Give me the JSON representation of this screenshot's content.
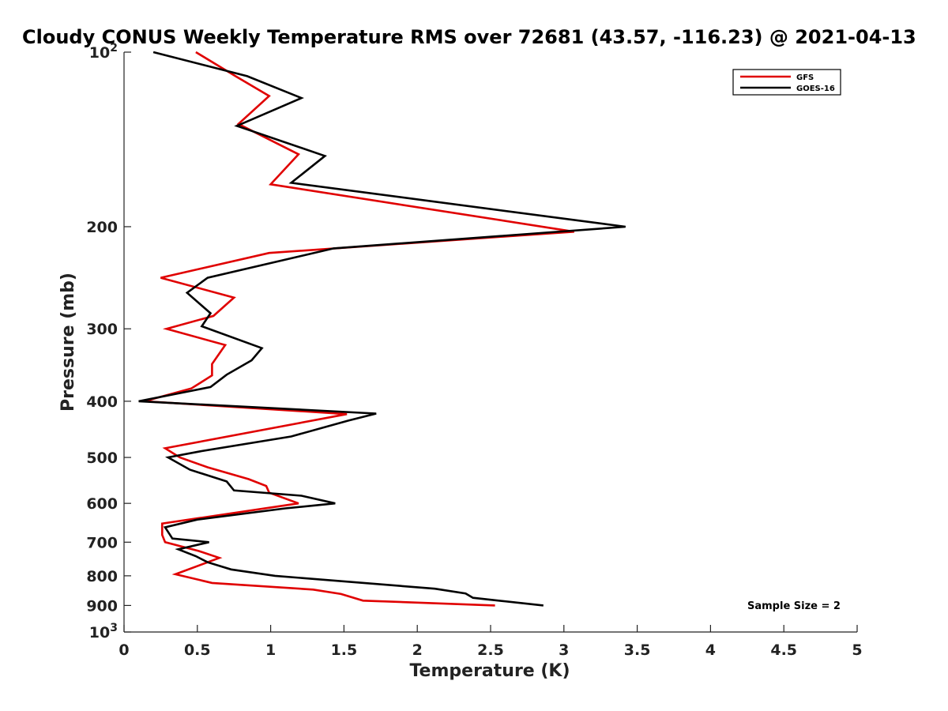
{
  "chart_data": {
    "type": "line",
    "orientation": "vertical-profile",
    "title": "Cloudy CONUS Weekly Temperature RMS over 72681 (43.57, -116.23) @ 2021-04-13",
    "xlabel": "Temperature (K)",
    "ylabel": "Pressure (mb)",
    "xlim": [
      0,
      5
    ],
    "ylim": [
      100,
      1000
    ],
    "y_scale": "log",
    "y_reversed": true,
    "x_ticks": [
      "0",
      "0.5",
      "1",
      "1.5",
      "2",
      "2.5",
      "3",
      "3.5",
      "4",
      "4.5",
      "5"
    ],
    "y_ticks": [
      {
        "value": 100,
        "label": "10",
        "sup": "2"
      },
      {
        "value": 200,
        "label": "200"
      },
      {
        "value": 300,
        "label": "300"
      },
      {
        "value": 400,
        "label": "400"
      },
      {
        "value": 500,
        "label": "500"
      },
      {
        "value": 600,
        "label": "600"
      },
      {
        "value": 700,
        "label": "700"
      },
      {
        "value": 800,
        "label": "800"
      },
      {
        "value": 900,
        "label": "900"
      },
      {
        "value": 1000,
        "label": "10",
        "sup": "3"
      }
    ],
    "grid": false,
    "legend_position": "top-right",
    "annotation": "Sample Size = 2",
    "series": [
      {
        "name": "GFS",
        "color": "#e00000",
        "points": [
          [
            0.49,
            100
          ],
          [
            0.76,
            110
          ],
          [
            0.99,
            119
          ],
          [
            0.78,
            133
          ],
          [
            1.19,
            150
          ],
          [
            1.0,
            169
          ],
          [
            3.07,
            204
          ],
          [
            0.99,
            222
          ],
          [
            0.25,
            245
          ],
          [
            0.75,
            265
          ],
          [
            0.61,
            285
          ],
          [
            0.29,
            300
          ],
          [
            0.69,
            320
          ],
          [
            0.6,
            345
          ],
          [
            0.6,
            361
          ],
          [
            0.46,
            380
          ],
          [
            0.14,
            400
          ],
          [
            1.52,
            421
          ],
          [
            0.28,
            482
          ],
          [
            0.38,
            500
          ],
          [
            0.57,
            520
          ],
          [
            0.85,
            545
          ],
          [
            0.97,
            560
          ],
          [
            0.99,
            575
          ],
          [
            1.19,
            600
          ],
          [
            0.26,
            650
          ],
          [
            0.26,
            680
          ],
          [
            0.28,
            700
          ],
          [
            0.51,
            725
          ],
          [
            0.65,
            745
          ],
          [
            0.35,
            795
          ],
          [
            0.6,
            823
          ],
          [
            1.29,
            845
          ],
          [
            1.48,
            860
          ],
          [
            1.63,
            883
          ],
          [
            2.53,
            900
          ]
        ]
      },
      {
        "name": "GOES-16",
        "color": "#000000",
        "points": [
          [
            0.2,
            100
          ],
          [
            0.84,
            110
          ],
          [
            1.21,
            120
          ],
          [
            0.77,
            134
          ],
          [
            1.37,
            151
          ],
          [
            1.14,
            168
          ],
          [
            3.42,
            200
          ],
          [
            1.43,
            218
          ],
          [
            0.57,
            245
          ],
          [
            0.43,
            260
          ],
          [
            0.59,
            282
          ],
          [
            0.53,
            297
          ],
          [
            0.94,
            324
          ],
          [
            0.87,
            340
          ],
          [
            0.7,
            360
          ],
          [
            0.59,
            378
          ],
          [
            0.1,
            400
          ],
          [
            1.72,
            420
          ],
          [
            1.53,
            432
          ],
          [
            1.14,
            460
          ],
          [
            0.52,
            488
          ],
          [
            0.3,
            500
          ],
          [
            0.45,
            525
          ],
          [
            0.7,
            550
          ],
          [
            0.75,
            570
          ],
          [
            1.21,
            582
          ],
          [
            1.44,
            600
          ],
          [
            1.1,
            612
          ],
          [
            0.5,
            640
          ],
          [
            0.28,
            660
          ],
          [
            0.33,
            690
          ],
          [
            0.58,
            700
          ],
          [
            0.37,
            720
          ],
          [
            0.49,
            740
          ],
          [
            0.57,
            758
          ],
          [
            0.73,
            780
          ],
          [
            1.03,
            800
          ],
          [
            2.12,
            842
          ],
          [
            2.33,
            858
          ],
          [
            2.38,
            873
          ],
          [
            2.86,
            900
          ]
        ]
      }
    ]
  }
}
